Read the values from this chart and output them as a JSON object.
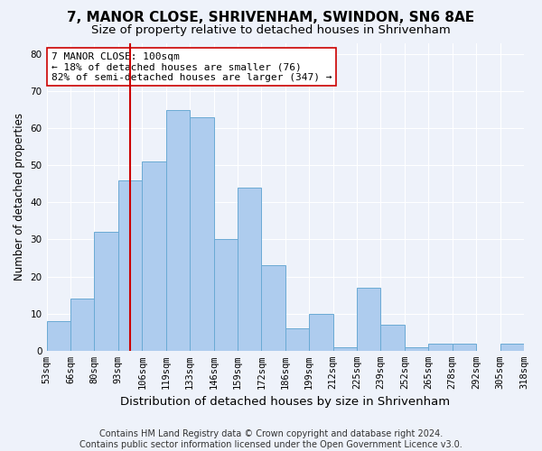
{
  "title": "7, MANOR CLOSE, SHRIVENHAM, SWINDON, SN6 8AE",
  "subtitle": "Size of property relative to detached houses in Shrivenham",
  "xlabel": "Distribution of detached houses by size in Shrivenham",
  "ylabel": "Number of detached properties",
  "bar_color": "#aeccee",
  "bar_edge_color": "#6aaad4",
  "bar_values": [
    8,
    14,
    32,
    46,
    51,
    65,
    63,
    30,
    44,
    23,
    6,
    10,
    1,
    17,
    7,
    1,
    2,
    2,
    0,
    2
  ],
  "bin_labels": [
    "53sqm",
    "66sqm",
    "80sqm",
    "93sqm",
    "106sqm",
    "119sqm",
    "133sqm",
    "146sqm",
    "159sqm",
    "172sqm",
    "186sqm",
    "199sqm",
    "212sqm",
    "225sqm",
    "239sqm",
    "252sqm",
    "265sqm",
    "278sqm",
    "292sqm",
    "305sqm",
    "318sqm"
  ],
  "n_bins": 20,
  "property_size_bin": 3.5,
  "annotation_text": "7 MANOR CLOSE: 100sqm\n← 18% of detached houses are smaller (76)\n82% of semi-detached houses are larger (347) →",
  "annotation_box_color": "#ffffff",
  "annotation_box_edge_color": "#cc0000",
  "vline_color": "#cc0000",
  "ylim": [
    0,
    83
  ],
  "yticks": [
    0,
    10,
    20,
    30,
    40,
    50,
    60,
    70,
    80
  ],
  "background_color": "#eef2fa",
  "grid_color": "#ffffff",
  "footer": "Contains HM Land Registry data © Crown copyright and database right 2024.\nContains public sector information licensed under the Open Government Licence v3.0.",
  "title_fontsize": 11,
  "subtitle_fontsize": 9.5,
  "xlabel_fontsize": 9.5,
  "ylabel_fontsize": 8.5,
  "tick_fontsize": 7.5,
  "annotation_fontsize": 8,
  "footer_fontsize": 7
}
